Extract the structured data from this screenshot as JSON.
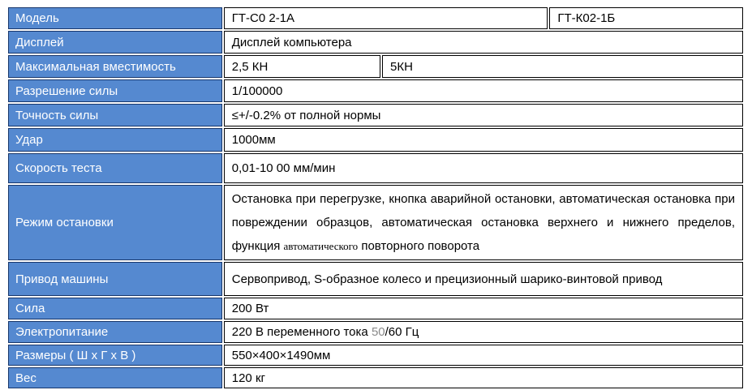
{
  "colors": {
    "header_blue": "#5589d0",
    "header_border": "#17366b",
    "cell_border": "#000000",
    "label_text": "#ffffff",
    "value_text": "#000000",
    "muted_text": "#8a8a8a"
  },
  "table": {
    "rows": [
      {
        "label": "Модель",
        "values": [
          "ГТ-С0 2-1А",
          "ГТ-К02-1Б"
        ]
      },
      {
        "label": "Дисплей",
        "values": [
          "Дисплей компьютера"
        ]
      },
      {
        "label": "Максимальная вместимость",
        "values": [
          "2,5 КН",
          "5КН"
        ]
      },
      {
        "label": "Разрешение силы",
        "values": [
          "1/100000"
        ]
      },
      {
        "label": "Точность силы",
        "values": [
          "≤+/-0.2% от полной нормы"
        ]
      },
      {
        "label": "Удар",
        "values": [
          "1000мм"
        ]
      },
      {
        "label": "Скорость теста",
        "values": [
          "0,01-10 00 мм/мин"
        ]
      },
      {
        "label": "Режим остановки",
        "parts": {
          "before": "Остановка при перегрузке, кнопка аварийной остановки, автоматическая остановка при повреждении образцов, автоматическая остановка верхнего и нижнего пределов, функция ",
          "serif": "автоматического",
          "after": " повторного поворота"
        }
      },
      {
        "label": "Привод машины",
        "values": [
          "Сервопривод, S-образное колесо и прецизионный шарико-винтовой привод"
        ]
      },
      {
        "label": "Сила",
        "values": [
          "200 Вт"
        ]
      },
      {
        "label": "Электропитание",
        "parts": {
          "before": "220 В переменного тока ",
          "gray": "50",
          "after": "/60 Гц"
        }
      },
      {
        "label": "Размеры ( Ш х Г х В )",
        "values": [
          "550×400×1490мм"
        ]
      },
      {
        "label": "Вес",
        "values": [
          "120 кг"
        ]
      }
    ]
  }
}
